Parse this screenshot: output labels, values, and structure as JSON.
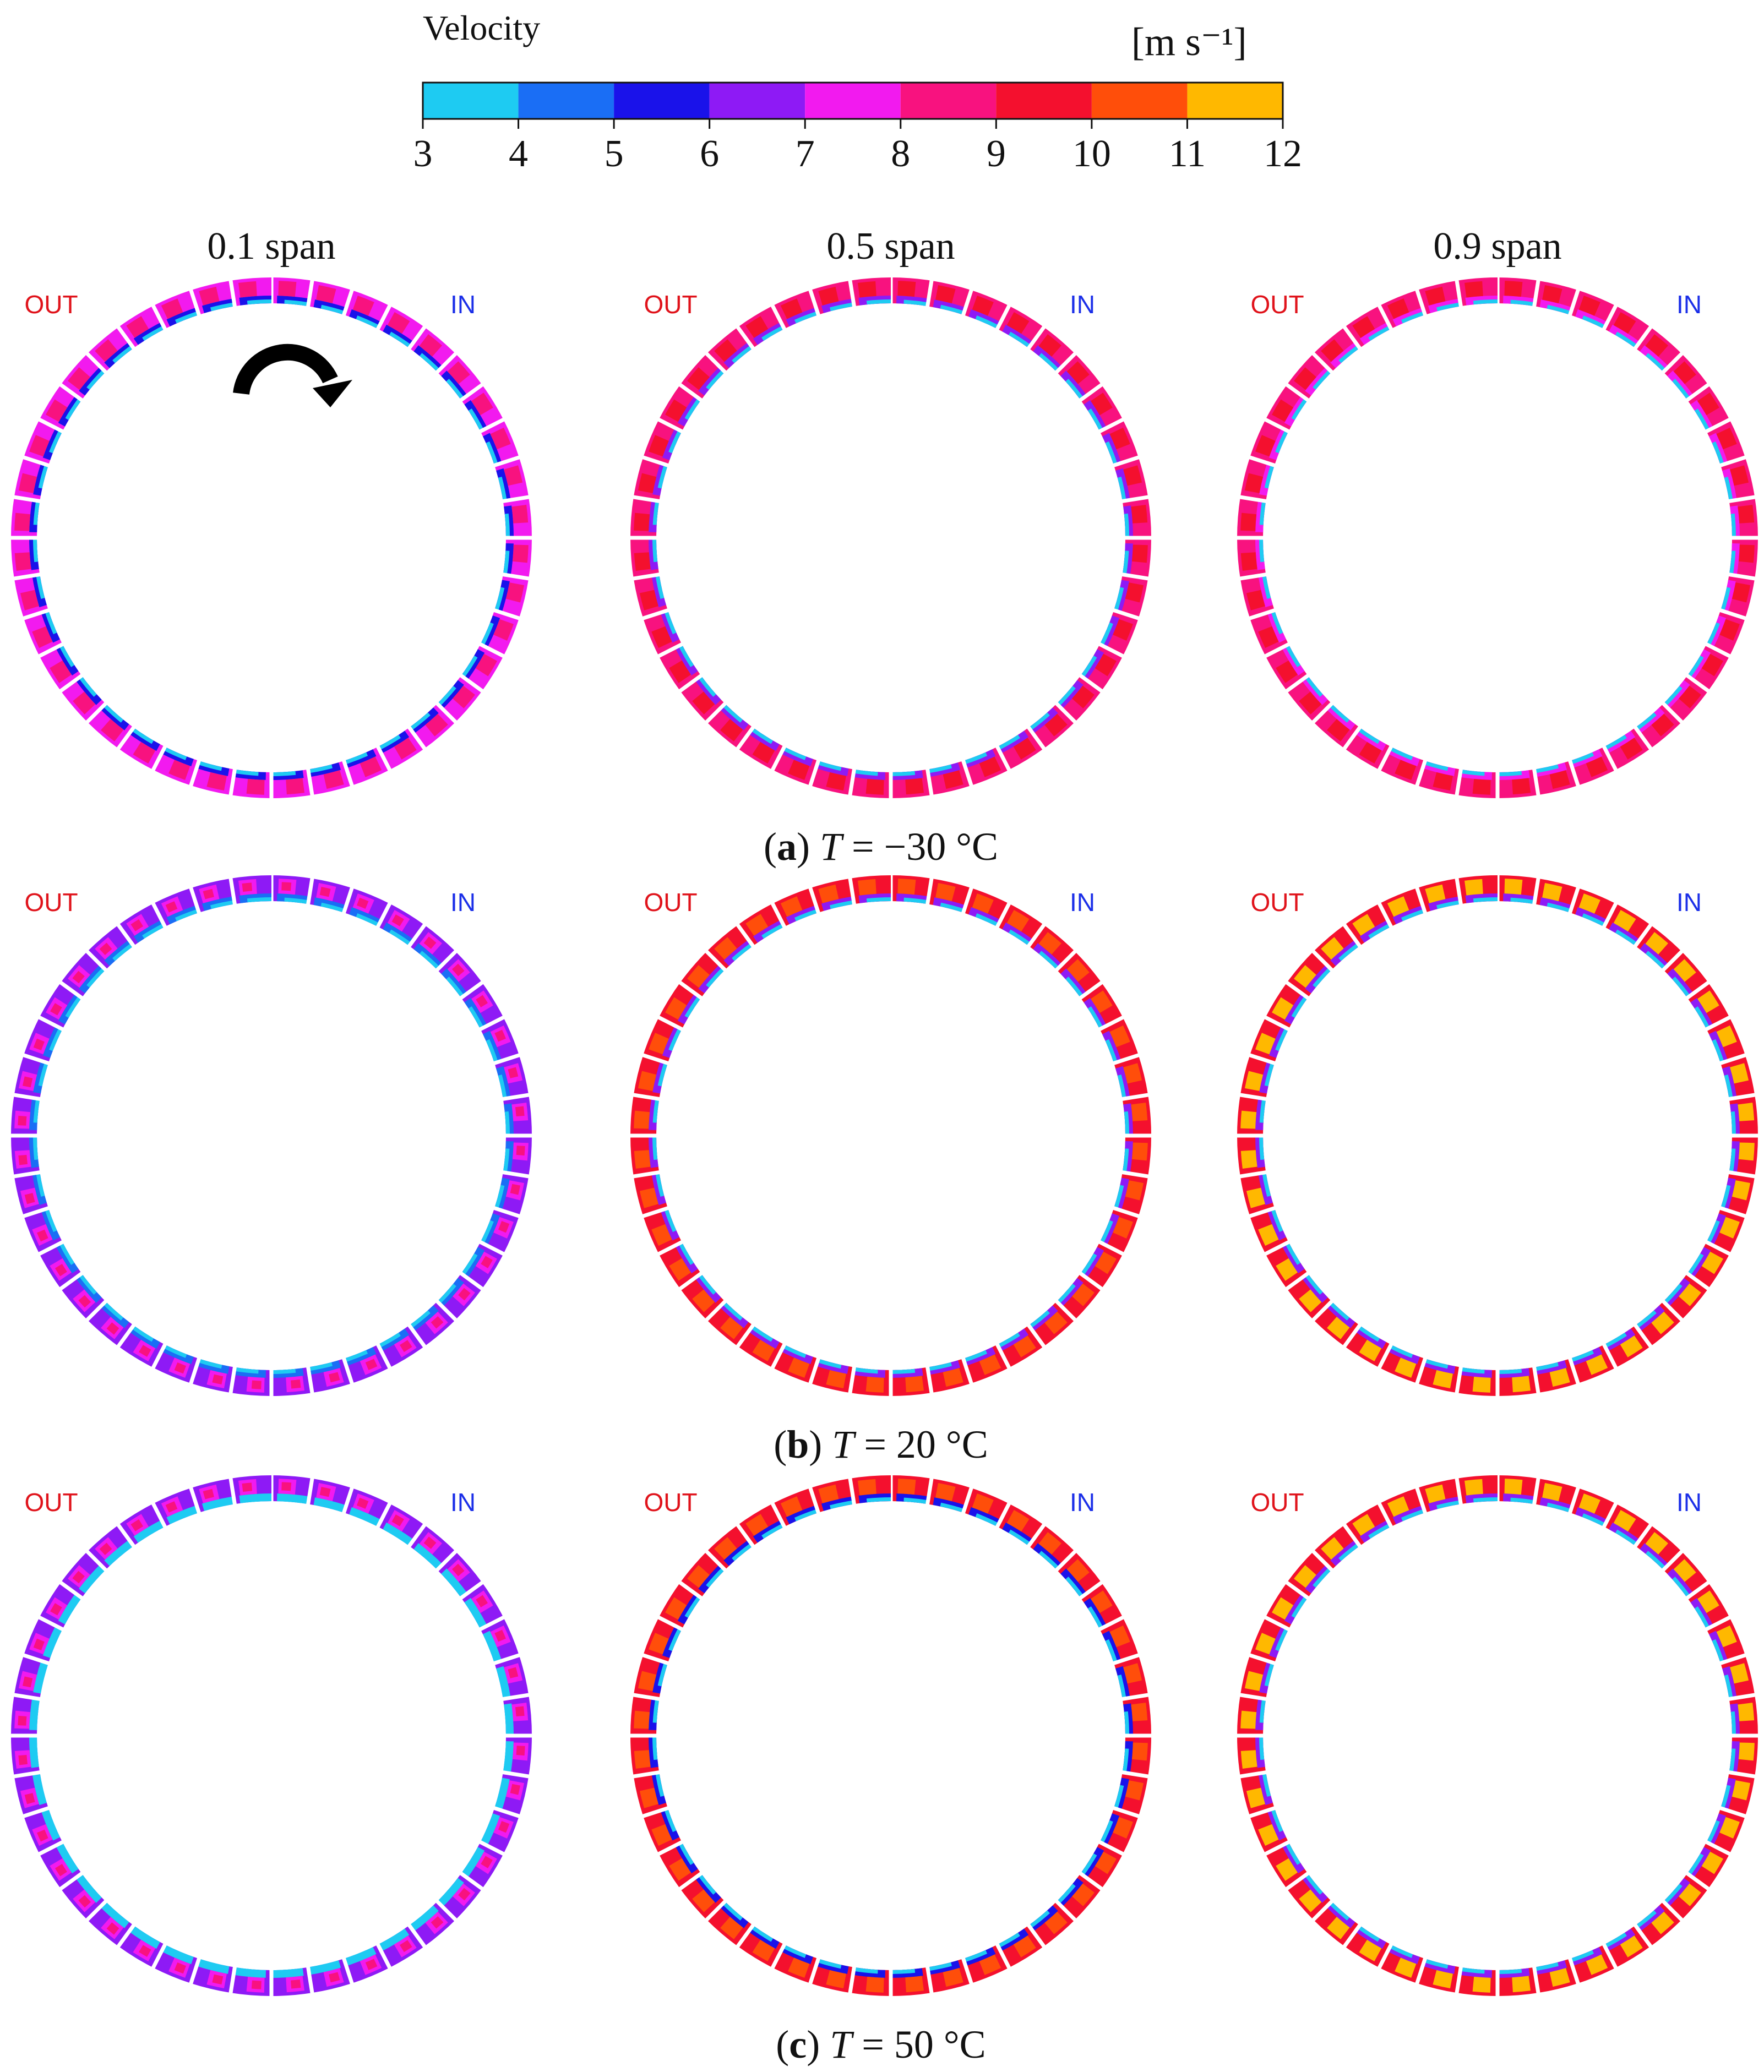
{
  "colorbar": {
    "title": "Velocity",
    "unit": "[m s⁻¹]",
    "ticks": [
      "3",
      "4",
      "5",
      "6",
      "7",
      "8",
      "9",
      "10",
      "11",
      "12"
    ],
    "bins": [
      {
        "from": 3,
        "to": 4,
        "color": "#1ecbf2"
      },
      {
        "from": 4,
        "to": 5,
        "color": "#1a6ef5"
      },
      {
        "from": 5,
        "to": 6,
        "color": "#1a12ea"
      },
      {
        "from": 6,
        "to": 7,
        "color": "#8e1af5"
      },
      {
        "from": 7,
        "to": 8,
        "color": "#f21aef"
      },
      {
        "from": 8,
        "to": 9,
        "color": "#f8127f"
      },
      {
        "from": 9,
        "to": 10,
        "color": "#f4102e"
      },
      {
        "from": 10,
        "to": 11,
        "color": "#ff4e0a"
      },
      {
        "from": 11,
        "to": 12,
        "color": "#ffb800"
      }
    ]
  },
  "columns": [
    {
      "label": "0.1 span"
    },
    {
      "label": "0.5 span"
    },
    {
      "label": "0.9 span"
    }
  ],
  "ring_labels": {
    "out": "OUT",
    "in": "IN"
  },
  "out_color": "#e0131b",
  "in_color": "#1b2fe8",
  "rotation_icon": "clockwise-arrow-icon",
  "rows": [
    {
      "tag": "a",
      "caption_var": "T",
      "caption_eq": " = −30 °C",
      "rings": [
        {
          "base": 7,
          "core": 8,
          "accent": 5
        },
        {
          "base": 8,
          "core": 9,
          "accent": 6
        },
        {
          "base": 8.5,
          "core": 9,
          "accent": 7
        }
      ]
    },
    {
      "tag": "b",
      "caption_var": "T",
      "caption_eq": " = 20 °C",
      "rings": [
        {
          "base": 6.5,
          "core": 7.5,
          "accent": 4
        },
        {
          "base": 9,
          "core": 10,
          "accent": 6
        },
        {
          "base": 9,
          "core": 11.5,
          "accent": 6
        }
      ]
    },
    {
      "tag": "c",
      "caption_var": "T",
      "caption_eq": " = 50 °C",
      "rings": [
        {
          "base": 6.5,
          "core": 7.5,
          "accent": 3.5
        },
        {
          "base": 9,
          "core": 10,
          "accent": 5
        },
        {
          "base": 9.5,
          "core": 11.5,
          "accent": 6
        }
      ]
    }
  ]
}
